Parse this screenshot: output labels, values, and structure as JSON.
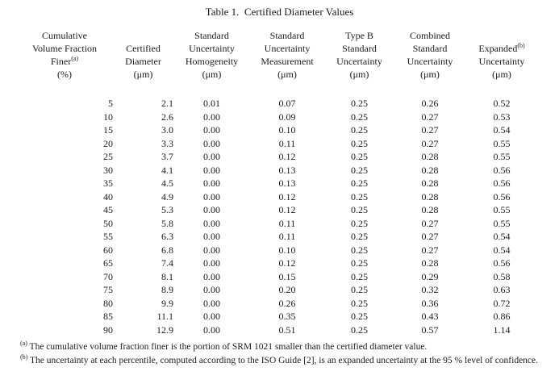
{
  "page": {
    "title": "Table 1.  Certified Diameter Values"
  },
  "table": {
    "columns": [
      {
        "id": "cumulative-volume-fraction-finer",
        "lines": [
          "Cumulative",
          "Volume Fraction",
          "Finer",
          "(%)"
        ],
        "sup": {
          "line": 2,
          "text": "(a)"
        }
      },
      {
        "id": "certified-diameter",
        "lines": [
          "Certified",
          "Diameter",
          "(μm)"
        ]
      },
      {
        "id": "standard-uncertainty-homogeneity",
        "lines": [
          "Standard",
          "Uncertainty",
          "Homogeneity",
          "(μm)"
        ]
      },
      {
        "id": "standard-uncertainty-measurement",
        "lines": [
          "Standard",
          "Uncertainty",
          "Measurement",
          "(μm)"
        ]
      },
      {
        "id": "type-b-standard-uncertainty",
        "lines": [
          "Type B",
          "Standard",
          "Uncertainty",
          "(μm)"
        ]
      },
      {
        "id": "combined-standard-uncertainty",
        "lines": [
          "Combined",
          "Standard",
          "Uncertainty",
          "(μm)"
        ]
      },
      {
        "id": "expanded-uncertainty",
        "lines": [
          "Expanded",
          "Uncertainty",
          "(μm)"
        ],
        "sup": {
          "line": 0,
          "text": "(b)"
        }
      }
    ],
    "rows": [
      [
        "5",
        "2.1",
        "0.01",
        "0.07",
        "0.25",
        "0.26",
        "0.52"
      ],
      [
        "10",
        "2.6",
        "0.00",
        "0.09",
        "0.25",
        "0.27",
        "0.53"
      ],
      [
        "15",
        "3.0",
        "0.00",
        "0.10",
        "0.25",
        "0.27",
        "0.54"
      ],
      [
        "20",
        "3.3",
        "0.00",
        "0.11",
        "0.25",
        "0.27",
        "0.55"
      ],
      [
        "25",
        "3.7",
        "0.00",
        "0.12",
        "0.25",
        "0.28",
        "0.55"
      ],
      [
        "30",
        "4.1",
        "0.00",
        "0.13",
        "0.25",
        "0.28",
        "0.56"
      ],
      [
        "35",
        "4.5",
        "0.00",
        "0.13",
        "0.25",
        "0.28",
        "0.56"
      ],
      [
        "40",
        "4.9",
        "0.00",
        "0.12",
        "0.25",
        "0.28",
        "0.56"
      ],
      [
        "45",
        "5.3",
        "0.00",
        "0.12",
        "0.25",
        "0.28",
        "0.55"
      ],
      [
        "50",
        "5.8",
        "0.00",
        "0.11",
        "0.25",
        "0.27",
        "0.55"
      ],
      [
        "55",
        "6.3",
        "0.00",
        "0.11",
        "0.25",
        "0.27",
        "0.54"
      ],
      [
        "60",
        "6.8",
        "0.00",
        "0.10",
        "0.25",
        "0.27",
        "0.54"
      ],
      [
        "65",
        "7.4",
        "0.00",
        "0.12",
        "0.25",
        "0.28",
        "0.56"
      ],
      [
        "70",
        "8.1",
        "0.00",
        "0.15",
        "0.25",
        "0.29",
        "0.58"
      ],
      [
        "75",
        "8.9",
        "0.00",
        "0.20",
        "0.25",
        "0.32",
        "0.63"
      ],
      [
        "80",
        "9.9",
        "0.00",
        "0.26",
        "0.25",
        "0.36",
        "0.72"
      ],
      [
        "85",
        "11.1",
        "0.00",
        "0.35",
        "0.25",
        "0.43",
        "0.86"
      ],
      [
        "90",
        "12.9",
        "0.00",
        "0.51",
        "0.25",
        "0.57",
        "1.14"
      ]
    ]
  },
  "footnotes": [
    {
      "marker": "(a)",
      "text": "The cumulative volume fraction finer is the portion of SRM 1021 smaller than the certified diameter value."
    },
    {
      "marker": "(b)",
      "text": "The uncertainty at each percentile, computed according to the ISO Guide [2], is an expanded uncertainty at the 95 % level of confidence."
    }
  ]
}
